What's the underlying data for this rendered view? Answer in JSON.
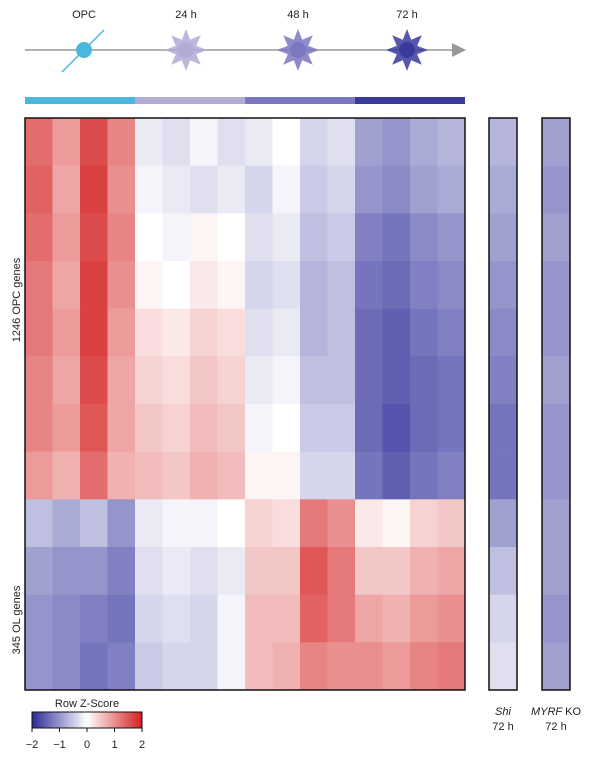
{
  "chart_data": {
    "type": "heatmap",
    "stages": [
      {
        "label": "OPC",
        "color": "#4bb7dd"
      },
      {
        "label": "24 h",
        "color": "#b0acd6"
      },
      {
        "label": "48 h",
        "color": "#7b77c0"
      },
      {
        "label": "72 h",
        "color": "#3a3a9c"
      }
    ],
    "row_groups": [
      "1246 OPC genes",
      "345 OL  genes"
    ],
    "values": [
      [
        1.3,
        0.9,
        1.6,
        1.1,
        -0.2,
        -0.3,
        -0.1,
        -0.3,
        -0.2,
        0.0,
        -0.4,
        -0.3,
        -0.9,
        -1.0,
        -0.8,
        -0.7
      ],
      [
        1.4,
        0.8,
        1.7,
        1.0,
        -0.1,
        -0.2,
        -0.3,
        -0.2,
        -0.4,
        -0.1,
        -0.5,
        -0.4,
        -1.0,
        -1.1,
        -0.9,
        -0.8
      ],
      [
        1.3,
        0.9,
        1.6,
        1.1,
        0.0,
        -0.1,
        0.1,
        0.0,
        -0.3,
        -0.2,
        -0.6,
        -0.5,
        -1.2,
        -1.3,
        -1.1,
        -1.0
      ],
      [
        1.2,
        0.8,
        1.7,
        1.0,
        0.1,
        0.0,
        0.2,
        0.1,
        -0.4,
        -0.3,
        -0.7,
        -0.6,
        -1.3,
        -1.4,
        -1.2,
        -1.1
      ],
      [
        1.2,
        0.9,
        1.7,
        0.9,
        0.3,
        0.2,
        0.4,
        0.3,
        -0.3,
        -0.2,
        -0.7,
        -0.6,
        -1.4,
        -1.5,
        -1.3,
        -1.2
      ],
      [
        1.1,
        0.8,
        1.6,
        0.8,
        0.4,
        0.3,
        0.5,
        0.4,
        -0.2,
        -0.1,
        -0.6,
        -0.6,
        -1.4,
        -1.5,
        -1.4,
        -1.3
      ],
      [
        1.1,
        0.9,
        1.5,
        0.8,
        0.5,
        0.4,
        0.6,
        0.5,
        -0.1,
        0.0,
        -0.5,
        -0.5,
        -1.4,
        -1.6,
        -1.4,
        -1.3
      ],
      [
        0.9,
        0.7,
        1.3,
        0.7,
        0.6,
        0.5,
        0.7,
        0.6,
        0.1,
        0.1,
        -0.4,
        -0.4,
        -1.3,
        -1.5,
        -1.3,
        -1.2
      ],
      [
        -0.6,
        -0.8,
        -0.6,
        -1.0,
        -0.2,
        -0.1,
        -0.1,
        0.0,
        0.4,
        0.3,
        1.2,
        1.0,
        0.2,
        0.1,
        0.4,
        0.5
      ],
      [
        -0.9,
        -1.0,
        -1.0,
        -1.2,
        -0.3,
        -0.2,
        -0.3,
        -0.2,
        0.5,
        0.5,
        1.5,
        1.2,
        0.5,
        0.5,
        0.7,
        0.8
      ],
      [
        -1.0,
        -1.1,
        -1.2,
        -1.3,
        -0.4,
        -0.3,
        -0.4,
        -0.1,
        0.6,
        0.6,
        1.4,
        1.2,
        0.8,
        0.7,
        0.9,
        1.0
      ],
      [
        -1.0,
        -1.1,
        -1.3,
        -1.2,
        -0.5,
        -0.4,
        -0.4,
        -0.1,
        0.6,
        0.7,
        1.1,
        1.0,
        1.0,
        0.9,
        1.1,
        1.2
      ]
    ],
    "side_panels": [
      {
        "gene": "Shi",
        "suffix": "",
        "time": "72 h",
        "values": [
          -0.7,
          -0.8,
          -0.9,
          -1.0,
          -1.1,
          -1.2,
          -1.3,
          -1.3,
          -0.9,
          -0.6,
          -0.4,
          -0.3
        ]
      },
      {
        "gene": "MYRF",
        "suffix": " KO",
        "time": "72 h",
        "values": [
          -0.9,
          -1.0,
          -0.9,
          -1.0,
          -1.0,
          -0.9,
          -1.0,
          -1.0,
          -0.9,
          -0.9,
          -1.0,
          -0.9
        ]
      }
    ],
    "colorbar": {
      "label": "Row Z-Score",
      "colors": [
        "#2b2b99",
        "#ffffff",
        "#d41f1f"
      ],
      "lim": [
        -2,
        2
      ],
      "ticks": [
        {
          "value": -2,
          "label": "−2"
        },
        {
          "value": -1,
          "label": "−1"
        },
        0,
        1,
        2
      ]
    }
  }
}
